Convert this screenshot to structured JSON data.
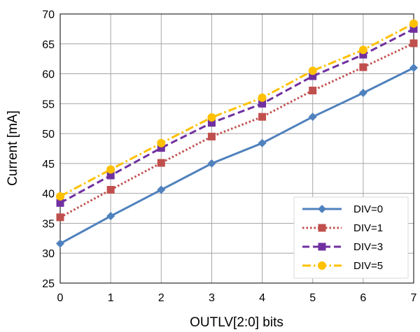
{
  "chart_data": {
    "type": "line",
    "title": "",
    "xlabel": "OUTLV[2:0] bits",
    "ylabel": "Current  [mA]",
    "x": [
      0,
      1,
      2,
      3,
      4,
      5,
      6,
      7
    ],
    "xlim": [
      0,
      7
    ],
    "ylim": [
      25,
      70
    ],
    "yticks": [
      25,
      30,
      35,
      40,
      45,
      50,
      55,
      60,
      65,
      70
    ],
    "grid": true,
    "legend_position": "bottom-right",
    "series": [
      {
        "name": "DIV=0",
        "color": "#4f81bd",
        "style": "solid",
        "marker": "diamond",
        "values": [
          31.6,
          36.2,
          40.6,
          45.0,
          48.4,
          52.8,
          56.8,
          61.0
        ]
      },
      {
        "name": "DIV=1",
        "color": "#c0504d",
        "style": "dotted",
        "marker": "square",
        "values": [
          36.0,
          40.6,
          45.1,
          49.5,
          52.8,
          57.2,
          61.1,
          65.1
        ]
      },
      {
        "name": "DIV=3",
        "color": "#7030a0",
        "style": "dashed",
        "marker": "square",
        "values": [
          38.4,
          43.0,
          47.6,
          51.8,
          55.0,
          59.6,
          63.2,
          67.5
        ]
      },
      {
        "name": "DIV=5",
        "color": "#ffc000",
        "style": "dashdot",
        "marker": "circle",
        "values": [
          39.5,
          44.0,
          48.4,
          52.7,
          56.0,
          60.5,
          64.0,
          68.4
        ]
      }
    ]
  }
}
